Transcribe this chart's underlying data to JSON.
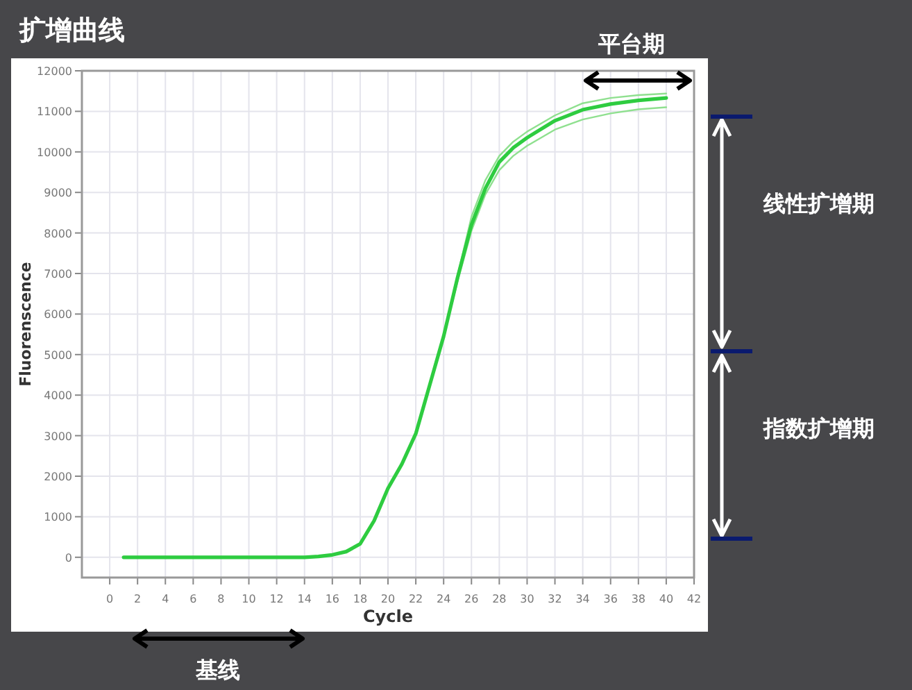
{
  "chart_data": {
    "type": "line",
    "title": "扩增曲线",
    "xlabel": "Cycle",
    "ylabel": "Fluorenscence",
    "annotations": [
      "平台期",
      "线性扩增期",
      "指数扩增期",
      "基线"
    ],
    "x": [
      1,
      4,
      8,
      12,
      14,
      15,
      16,
      17,
      18,
      19,
      20,
      21,
      22,
      23,
      24,
      25,
      26,
      27,
      28,
      29,
      30,
      32,
      34,
      36,
      38,
      40
    ],
    "series": [
      {
        "color": "#2ecc40",
        "values": [
          0,
          0,
          0,
          0,
          0,
          20,
          60,
          140,
          330,
          900,
          1700,
          2300,
          3050,
          4250,
          5450,
          6900,
          8200,
          9100,
          9750,
          10100,
          10350,
          10770,
          11040,
          11180,
          11270,
          11330
        ]
      },
      {
        "color": "#8fe08f",
        "values": [
          null,
          null,
          null,
          null,
          null,
          null,
          null,
          null,
          null,
          null,
          null,
          null,
          null,
          null,
          5450,
          6950,
          8400,
          9300,
          9900,
          10250,
          10500,
          10900,
          11200,
          11330,
          11400,
          11440
        ]
      },
      {
        "color": "#8fe08f",
        "values": [
          null,
          null,
          null,
          null,
          null,
          null,
          null,
          null,
          null,
          null,
          null,
          null,
          null,
          null,
          5450,
          6800,
          8050,
          8950,
          9550,
          9900,
          10150,
          10550,
          10800,
          10950,
          11050,
          11100
        ]
      }
    ],
    "xlim": [
      -2,
      42
    ],
    "ylim": [
      -500,
      12000
    ],
    "xticks": [
      0,
      2,
      4,
      6,
      8,
      10,
      12,
      14,
      16,
      18,
      20,
      22,
      24,
      26,
      28,
      30,
      32,
      34,
      36,
      38,
      40,
      42
    ],
    "yticks": [
      0,
      1000,
      2000,
      3000,
      4000,
      5000,
      6000,
      7000,
      8000,
      9000,
      10000,
      11000,
      12000
    ],
    "grid": true
  }
}
